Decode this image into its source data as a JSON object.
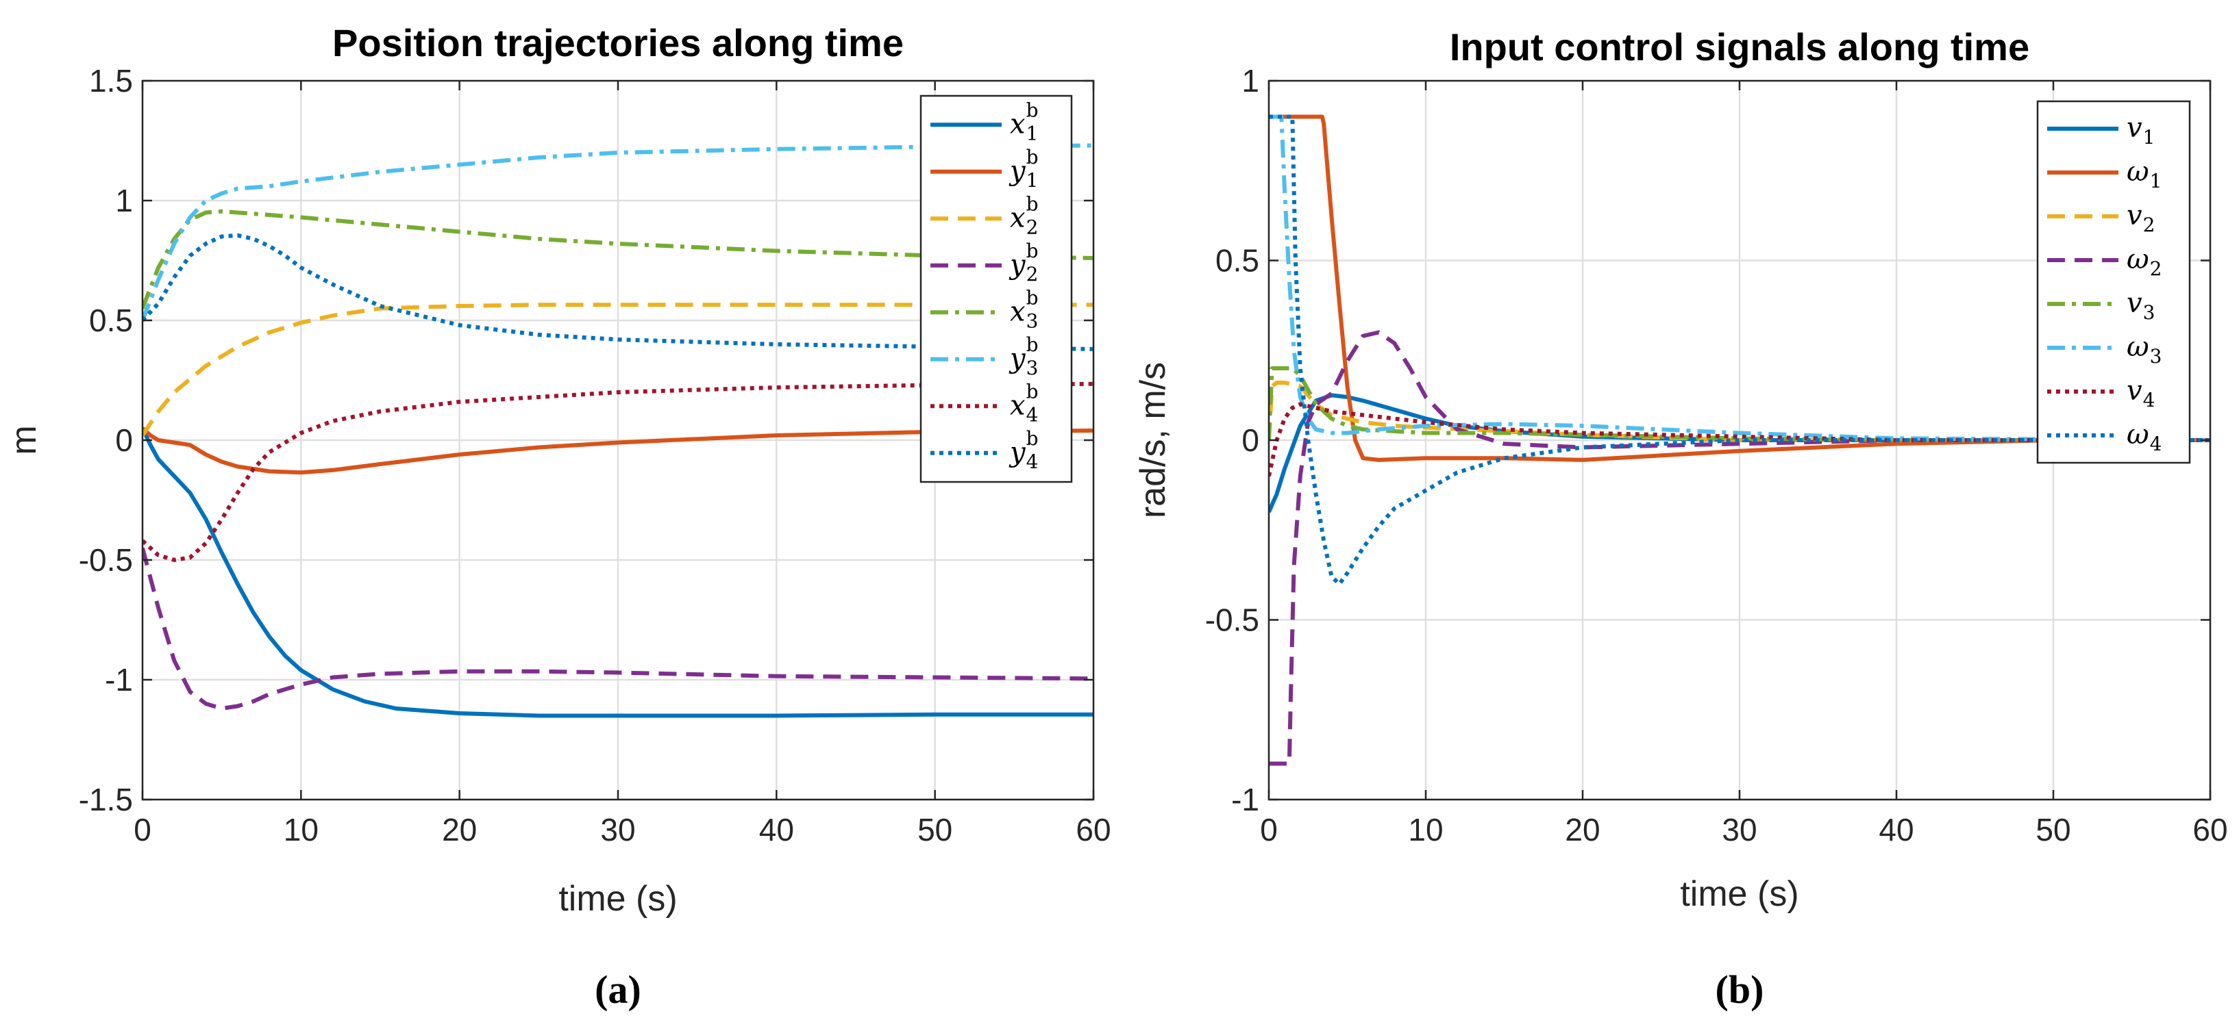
{
  "chart_data": [
    {
      "id": "a",
      "type": "line",
      "title": "Position trajectories along time",
      "xlabel": "time (s)",
      "ylabel": "m",
      "sublabel": "(a)",
      "xlim": [
        0,
        60
      ],
      "ylim": [
        -1.5,
        1.5
      ],
      "xticks": [
        0,
        10,
        20,
        30,
        40,
        50,
        60
      ],
      "yticks": [
        -1.5,
        -1,
        -0.5,
        0,
        0.5,
        1,
        1.5
      ],
      "xtick_labels": [
        "0",
        "10",
        "20",
        "30",
        "40",
        "50",
        "60"
      ],
      "ytick_labels": [
        "-1.5",
        "-1",
        "-0.5",
        "0",
        "0.5",
        "1",
        "1.5"
      ],
      "grid": true,
      "legend_position": "top-right",
      "series": [
        {
          "name": "x_1^b",
          "label_base": "x",
          "label_sub": "1",
          "label_sup": "b",
          "color": "#0072BD",
          "style": "solid",
          "x": [
            0,
            0.5,
            1,
            2,
            3,
            4,
            5,
            6,
            7,
            8,
            9,
            10,
            12,
            14,
            16,
            18,
            20,
            25,
            30,
            40,
            50,
            60
          ],
          "y": [
            0.05,
            -0.02,
            -0.08,
            -0.15,
            -0.22,
            -0.33,
            -0.47,
            -0.6,
            -0.72,
            -0.82,
            -0.9,
            -0.96,
            -1.04,
            -1.09,
            -1.12,
            -1.13,
            -1.14,
            -1.15,
            -1.15,
            -1.15,
            -1.145,
            -1.145
          ]
        },
        {
          "name": "y_1^b",
          "label_base": "y",
          "label_sub": "1",
          "label_sup": "b",
          "color": "#D95319",
          "style": "solid",
          "x": [
            0,
            0.5,
            1,
            2,
            3,
            4,
            5,
            6,
            8,
            10,
            12,
            15,
            20,
            25,
            30,
            40,
            50,
            60
          ],
          "y": [
            0.05,
            0.02,
            0.0,
            -0.01,
            -0.02,
            -0.06,
            -0.09,
            -0.11,
            -0.13,
            -0.135,
            -0.125,
            -0.1,
            -0.06,
            -0.03,
            -0.01,
            0.02,
            0.035,
            0.04
          ]
        },
        {
          "name": "x_2^b",
          "label_base": "x",
          "label_sub": "2",
          "label_sup": "b",
          "color": "#EDB120",
          "style": "dashed",
          "x": [
            0,
            1,
            2,
            4,
            6,
            8,
            10,
            12,
            15,
            20,
            25,
            30,
            40,
            50,
            60
          ],
          "y": [
            0.02,
            0.12,
            0.2,
            0.31,
            0.39,
            0.45,
            0.49,
            0.52,
            0.55,
            0.56,
            0.565,
            0.565,
            0.565,
            0.565,
            0.565
          ]
        },
        {
          "name": "y_2^b",
          "label_base": "y",
          "label_sub": "2",
          "label_sup": "b",
          "color": "#7E2F8E",
          "style": "dashed",
          "x": [
            0,
            1,
            2,
            3,
            4,
            5,
            6,
            7,
            8,
            10,
            12,
            15,
            20,
            25,
            30,
            40,
            50,
            60
          ],
          "y": [
            -0.45,
            -0.7,
            -0.92,
            -1.05,
            -1.1,
            -1.12,
            -1.11,
            -1.09,
            -1.06,
            -1.02,
            -0.99,
            -0.975,
            -0.965,
            -0.965,
            -0.97,
            -0.985,
            -0.99,
            -0.995
          ]
        },
        {
          "name": "x_3^b",
          "label_base": "x",
          "label_sub": "3",
          "label_sup": "b",
          "color": "#77AC30",
          "style": "dashdot",
          "x": [
            0,
            1,
            2,
            3,
            4,
            5,
            6,
            8,
            10,
            15,
            20,
            25,
            30,
            40,
            50,
            60
          ],
          "y": [
            0.55,
            0.72,
            0.84,
            0.92,
            0.95,
            0.955,
            0.95,
            0.94,
            0.93,
            0.9,
            0.87,
            0.84,
            0.82,
            0.79,
            0.77,
            0.76
          ]
        },
        {
          "name": "y_3^b",
          "label_base": "y",
          "label_sub": "3",
          "label_sup": "b",
          "color": "#4DBEEE",
          "style": "dashdot",
          "x": [
            0,
            1,
            2,
            3,
            4,
            5,
            6,
            8,
            10,
            15,
            20,
            25,
            30,
            40,
            50,
            60
          ],
          "y": [
            0.5,
            0.67,
            0.82,
            0.93,
            1.0,
            1.03,
            1.05,
            1.06,
            1.08,
            1.12,
            1.15,
            1.18,
            1.2,
            1.215,
            1.225,
            1.23
          ]
        },
        {
          "name": "x_4^b",
          "label_base": "x",
          "label_sub": "4",
          "label_sup": "b",
          "color": "#A2142F",
          "style": "dotted",
          "x": [
            0,
            1,
            2,
            3,
            4,
            5,
            6,
            7,
            8,
            10,
            12,
            15,
            20,
            25,
            30,
            40,
            50,
            60
          ],
          "y": [
            -0.42,
            -0.48,
            -0.5,
            -0.49,
            -0.43,
            -0.33,
            -0.22,
            -0.12,
            -0.05,
            0.03,
            0.08,
            0.12,
            0.16,
            0.18,
            0.2,
            0.22,
            0.23,
            0.235
          ]
        },
        {
          "name": "y_4^b",
          "label_base": "y",
          "label_sub": "4",
          "label_sup": "b",
          "color": "#0072BD",
          "style": "dotted",
          "x": [
            0,
            1,
            2,
            3,
            4,
            5,
            6,
            7,
            8,
            9,
            10,
            12,
            15,
            20,
            25,
            30,
            40,
            50,
            60
          ],
          "y": [
            0.5,
            0.57,
            0.68,
            0.77,
            0.82,
            0.85,
            0.855,
            0.84,
            0.81,
            0.77,
            0.72,
            0.65,
            0.56,
            0.48,
            0.44,
            0.42,
            0.4,
            0.39,
            0.38
          ]
        }
      ]
    },
    {
      "id": "b",
      "type": "line",
      "title": "Input control signals along time",
      "xlabel": "time (s)",
      "ylabel": "rad/s, m/s",
      "sublabel": "(b)",
      "xlim": [
        0,
        60
      ],
      "ylim": [
        -1,
        1
      ],
      "xticks": [
        0,
        10,
        20,
        30,
        40,
        50,
        60
      ],
      "yticks": [
        -1,
        -0.5,
        0,
        0.5,
        1
      ],
      "xtick_labels": [
        "0",
        "10",
        "20",
        "30",
        "40",
        "50",
        "60"
      ],
      "ytick_labels": [
        "-1",
        "-0.5",
        "0",
        "0.5",
        "1"
      ],
      "grid": true,
      "legend_position": "top-right",
      "series": [
        {
          "name": "v_1",
          "label_base": "v",
          "label_sub": "1",
          "color": "#0072BD",
          "style": "solid",
          "x": [
            0,
            0.5,
            1,
            2,
            3,
            4,
            5,
            6,
            8,
            10,
            12,
            15,
            20,
            30,
            40,
            60
          ],
          "y": [
            -0.2,
            -0.15,
            -0.08,
            0.04,
            0.11,
            0.125,
            0.12,
            0.11,
            0.085,
            0.06,
            0.04,
            0.025,
            0.01,
            0.0,
            0.0,
            0.0
          ]
        },
        {
          "name": "ω_1",
          "label_base": "ω",
          "label_sub": "1",
          "color": "#D95319",
          "style": "solid",
          "x": [
            0,
            3.4,
            3.5,
            4,
            4.5,
            5,
            5.5,
            6,
            7,
            10,
            15,
            20,
            30,
            40,
            50,
            60
          ],
          "y": [
            0.9,
            0.9,
            0.88,
            0.62,
            0.38,
            0.15,
            0.0,
            -0.05,
            -0.055,
            -0.05,
            -0.05,
            -0.055,
            -0.03,
            -0.01,
            0.0,
            0.0
          ]
        },
        {
          "name": "v_2",
          "label_base": "v",
          "label_sub": "2",
          "color": "#EDB120",
          "style": "dashed",
          "x": [
            0,
            0.2,
            0.5,
            1,
            2,
            3,
            4,
            6,
            8,
            10,
            15,
            20,
            30,
            40,
            60
          ],
          "y": [
            0.0,
            0.15,
            0.16,
            0.16,
            0.15,
            0.1,
            0.07,
            0.05,
            0.04,
            0.035,
            0.025,
            0.015,
            0.0,
            0.0,
            0.0
          ]
        },
        {
          "name": "ω_2",
          "label_base": "ω",
          "label_sub": "2",
          "color": "#7E2F8E",
          "style": "dashed",
          "x": [
            0,
            1.3,
            1.4,
            1.6,
            2,
            2.5,
            3,
            4,
            5,
            6,
            7,
            8,
            9,
            10,
            12,
            15,
            20,
            30,
            40,
            60
          ],
          "y": [
            -0.9,
            -0.9,
            -0.7,
            -0.35,
            -0.1,
            0.05,
            0.1,
            0.13,
            0.22,
            0.29,
            0.3,
            0.27,
            0.2,
            0.12,
            0.03,
            -0.01,
            -0.02,
            -0.01,
            0.0,
            0.0
          ]
        },
        {
          "name": "v_3",
          "label_base": "v",
          "label_sub": "3",
          "color": "#77AC30",
          "style": "dashdot",
          "x": [
            0,
            0.2,
            1.5,
            2,
            3,
            4,
            5,
            6,
            8,
            10,
            15,
            20,
            30,
            40,
            60
          ],
          "y": [
            0.0,
            0.2,
            0.2,
            0.18,
            0.1,
            0.06,
            0.04,
            0.03,
            0.025,
            0.02,
            0.02,
            0.015,
            0.005,
            0.0,
            0.0
          ]
        },
        {
          "name": "ω_3",
          "label_base": "ω",
          "label_sub": "3",
          "color": "#4DBEEE",
          "style": "dashdot",
          "x": [
            0,
            0.8,
            1,
            1.3,
            1.6,
            2,
            2.5,
            3,
            4,
            5,
            7,
            10,
            15,
            20,
            25,
            30,
            40,
            60
          ],
          "y": [
            0.9,
            0.9,
            0.7,
            0.45,
            0.25,
            0.12,
            0.06,
            0.03,
            0.02,
            0.02,
            0.03,
            0.04,
            0.045,
            0.04,
            0.03,
            0.02,
            0.005,
            0.0
          ]
        },
        {
          "name": "v_4",
          "label_base": "v",
          "label_sub": "4",
          "color": "#A2142F",
          "style": "dotted",
          "x": [
            0,
            0.5,
            1,
            1.5,
            2,
            3,
            4,
            5,
            6,
            8,
            10,
            15,
            20,
            30,
            40,
            60
          ],
          "y": [
            -0.1,
            0.0,
            0.06,
            0.09,
            0.1,
            0.09,
            0.08,
            0.075,
            0.07,
            0.06,
            0.05,
            0.03,
            0.02,
            0.01,
            0.0,
            0.0
          ]
        },
        {
          "name": "ω_4",
          "label_base": "ω",
          "label_sub": "4",
          "color": "#0072BD",
          "style": "dotted",
          "x": [
            0,
            1.5,
            1.7,
            2,
            2.5,
            3,
            3.5,
            4,
            4.5,
            5,
            6,
            7,
            8,
            10,
            12,
            15,
            20,
            25,
            30,
            40,
            60
          ],
          "y": [
            0.9,
            0.9,
            0.5,
            0.2,
            0.0,
            -0.15,
            -0.28,
            -0.38,
            -0.4,
            -0.37,
            -0.3,
            -0.24,
            -0.19,
            -0.14,
            -0.09,
            -0.05,
            -0.02,
            -0.01,
            0.0,
            0.0,
            0.0
          ]
        }
      ]
    }
  ]
}
